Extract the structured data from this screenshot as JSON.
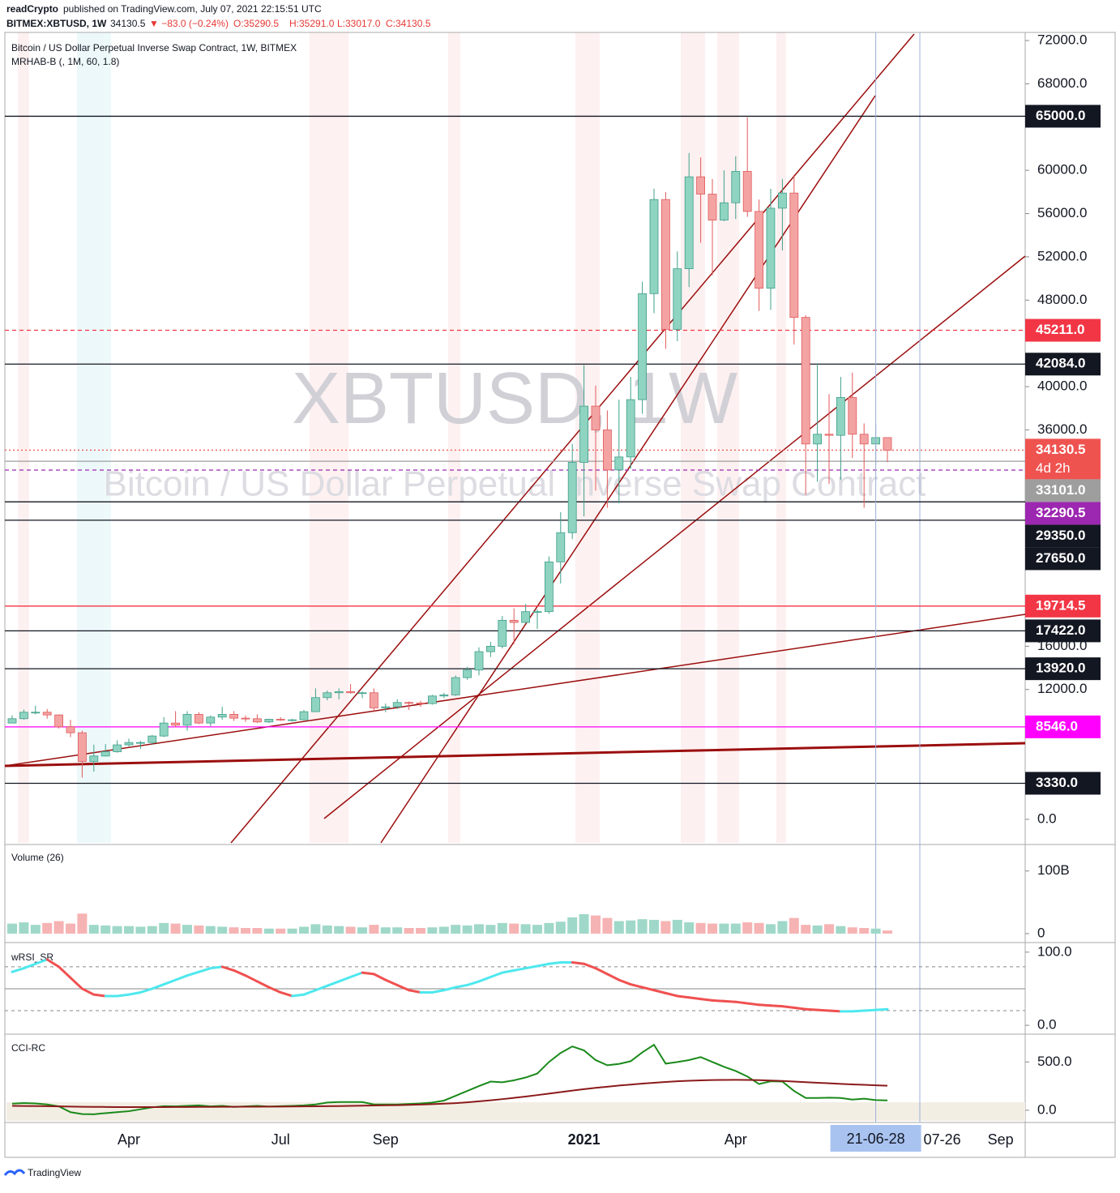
{
  "header": {
    "publisher": "readCrypto",
    "published": "published on TradingView.com, July 07, 2021 22:15:51 UTC",
    "symbol": "BITMEX:XBTUSD, 1W",
    "last": "34130.5",
    "change": "▼ −83.0 (−0.24%)",
    "ohlc": [
      "O:35290.5",
      "H:35291.0",
      "L:33017.0",
      "C:34130.5"
    ]
  },
  "footer": "TradingView",
  "chart_data": [
    {
      "type": "candlestick",
      "title": "Bitcoin / US Dollar Perpetual Inverse Swap Contract, 1W, BITMEX",
      "subtitle": "MRHAB-B (, 1M, 60, 1.8)",
      "watermark": [
        "XBTUSD, 1W",
        "Bitcoin / US Dollar Perpetual Inverse Swap Contract"
      ],
      "categories": [
        null,
        null,
        null,
        null,
        null,
        null,
        null,
        null,
        null,
        null,
        "Apr",
        null,
        null,
        null,
        null,
        null,
        null,
        null,
        null,
        null,
        null,
        null,
        null,
        "Jul",
        null,
        null,
        null,
        null,
        null,
        null,
        null,
        null,
        "Sep",
        null,
        null,
        null,
        null,
        null,
        null,
        null,
        null,
        null,
        null,
        null,
        null,
        null,
        null,
        null,
        null,
        "2021",
        null,
        null,
        null,
        null,
        null,
        null,
        null,
        null,
        null,
        null,
        null,
        null,
        "Apr",
        null,
        null,
        null,
        null,
        null,
        null,
        null,
        null,
        null,
        null,
        null,
        null,
        null
      ],
      "open": [
        8900,
        9300,
        9900,
        9900,
        9650,
        8550,
        8000,
        5350,
        5850,
        6250,
        6880,
        7100,
        7100,
        7700,
        8900,
        8700,
        9700,
        8900,
        9450,
        9700,
        9350,
        9300,
        9000,
        9250,
        9200,
        9200,
        9950,
        11250,
        11700,
        11800,
        11700,
        11700,
        10300,
        10400,
        10800,
        10750,
        10700,
        11400,
        11500,
        13100,
        13800,
        15500,
        16000,
        18400,
        18200,
        19200,
        19200,
        23800,
        26500,
        33000,
        38200,
        36000,
        32300,
        33500,
        38800,
        48600,
        57300,
        45300,
        50900,
        59400,
        57800,
        55400,
        57000,
        59900,
        56200,
        49100,
        56500,
        57900,
        46400,
        34700,
        35600,
        35500,
        39000,
        35600,
        34700,
        35290.5
      ],
      "high": [
        9600,
        10150,
        10500,
        10200,
        9700,
        9200,
        8200,
        6900,
        6950,
        7300,
        7460,
        7250,
        7800,
        9450,
        10000,
        10000,
        9900,
        9600,
        10400,
        10000,
        9600,
        9700,
        9300,
        9450,
        9300,
        10100,
        12100,
        11900,
        12100,
        12500,
        11800,
        12100,
        10700,
        11100,
        10900,
        10950,
        11500,
        11700,
        13300,
        14100,
        15900,
        16400,
        18800,
        19500,
        19900,
        19400,
        24300,
        28400,
        34700,
        42000,
        40100,
        37800,
        38800,
        40900,
        49700,
        58300,
        58000,
        52500,
        61600,
        61200,
        59200,
        60000,
        61300,
        64900,
        57300,
        58300,
        59200,
        59600,
        46600,
        42100,
        39300,
        40900,
        41300,
        36600,
        36600,
        35291
      ],
      "low": [
        8900,
        9200,
        9700,
        9300,
        8400,
        7600,
        3850,
        4400,
        5800,
        6150,
        6750,
        6500,
        6900,
        7600,
        8500,
        8200,
        8800,
        8600,
        9200,
        9100,
        9000,
        8900,
        8900,
        9100,
        9050,
        9150,
        9950,
        11000,
        11100,
        11600,
        11200,
        9900,
        9900,
        10200,
        10100,
        10400,
        10600,
        11200,
        11400,
        12900,
        13300,
        15000,
        15800,
        16200,
        18100,
        17600,
        19000,
        21800,
        25900,
        28000,
        30400,
        28800,
        29200,
        32400,
        37500,
        46800,
        43500,
        44200,
        49200,
        53300,
        50300,
        55300,
        55500,
        55700,
        47000,
        47100,
        52600,
        43900,
        30000,
        31200,
        31000,
        31400,
        33400,
        28800,
        32700,
        33017
      ],
      "close": [
        9300,
        9900,
        9900,
        9650,
        8550,
        8000,
        5350,
        5850,
        6250,
        6880,
        7100,
        7100,
        7700,
        8900,
        8700,
        9700,
        8900,
        9450,
        9700,
        9350,
        9300,
        9000,
        9250,
        9200,
        9200,
        9950,
        11250,
        11700,
        11800,
        11700,
        11700,
        10300,
        10400,
        10800,
        10750,
        10700,
        11400,
        11500,
        13100,
        13800,
        15500,
        16000,
        18400,
        18200,
        19200,
        19200,
        23800,
        26500,
        33000,
        38200,
        36000,
        32300,
        33500,
        38800,
        48600,
        57300,
        45300,
        50900,
        59400,
        57800,
        55400,
        57000,
        59900,
        56200,
        49100,
        56500,
        57900,
        46400,
        34700,
        35600,
        35500,
        39000,
        35600,
        34700,
        35290.5,
        34130.5
      ],
      "up_color": "#8fd3c1",
      "down_color": "#f4a3a3",
      "ylim": [
        -2330,
        72750
      ],
      "yticks": [
        {
          "value": 72000,
          "label": "72000.0"
        },
        {
          "value": 68000,
          "label": "68000.0"
        },
        {
          "value": 60000,
          "label": "60000.0"
        },
        {
          "value": 56000,
          "label": "56000.0"
        },
        {
          "value": 52000,
          "label": "52000.0"
        },
        {
          "value": 48000,
          "label": "48000.0"
        },
        {
          "value": 40000,
          "label": "40000.0"
        },
        {
          "value": 36000,
          "label": "36000.0"
        },
        {
          "value": 16000,
          "label": "16000.0"
        },
        {
          "value": 12000,
          "label": "12000.0"
        },
        {
          "value": 0,
          "label": "0.0"
        }
      ],
      "levels": [
        {
          "value": 65000,
          "label": "65000.0",
          "color": "#131722",
          "style": "solid"
        },
        {
          "value": 45211,
          "label": "45211.0",
          "color": "#f23645",
          "style": "dashed"
        },
        {
          "value": 42084,
          "label": "42084.0",
          "color": "#131722",
          "style": "solid"
        },
        {
          "value": 34130.5,
          "label": "34130.5",
          "countdown": "4d 2h",
          "color": "#ef5350",
          "style": "dotted"
        },
        {
          "value": 33101,
          "label": "33101.0",
          "color": "#9e9e9e",
          "style": "solid"
        },
        {
          "value": 32290.5,
          "label": "32290.5",
          "color": "#9c27b0",
          "style": "dashed"
        },
        {
          "value": 29350,
          "label": "29350.0",
          "color": "#131722",
          "style": "solid"
        },
        {
          "value": 27650,
          "label": "27650.0",
          "color": "#131722",
          "style": "solid"
        },
        {
          "value": 19714.5,
          "label": "19714.5",
          "color": "#f23645",
          "style": "solid"
        },
        {
          "value": 17422,
          "label": "17422.0",
          "color": "#131722",
          "style": "solid"
        },
        {
          "value": 13920,
          "label": "13920.0",
          "color": "#131722",
          "style": "solid"
        },
        {
          "value": 8546,
          "label": "8546.0",
          "color": "#ff00ff",
          "style": "solid"
        },
        {
          "value": 3330,
          "label": "3330.0",
          "color": "#131722",
          "style": "solid"
        }
      ],
      "crosshair_label": "21-06-28",
      "future_labels": [
        "07-26",
        "Sep"
      ]
    },
    {
      "type": "bar",
      "title": "Volume (26)",
      "values": [
        16,
        18,
        14,
        17,
        20,
        16,
        32,
        14,
        13,
        12,
        12,
        11,
        12,
        17,
        16,
        14,
        13,
        12,
        11,
        10,
        9,
        9,
        8,
        8,
        8,
        11,
        15,
        13,
        12,
        11,
        10,
        14,
        10,
        10,
        9,
        9,
        10,
        11,
        14,
        13,
        15,
        14,
        17,
        16,
        15,
        14,
        17,
        19,
        26,
        31,
        29,
        25,
        20,
        21,
        23,
        22,
        20,
        22,
        18,
        17,
        16,
        16,
        16,
        18,
        17,
        15,
        20,
        25,
        14,
        13,
        15,
        12,
        10,
        9,
        8,
        5
      ],
      "up_color": "#9fd8c8",
      "down_color": "#f6b3b3",
      "ylim": [
        -13,
        141
      ],
      "yticks": [
        {
          "value": 100,
          "label": "100B"
        },
        0
      ]
    },
    {
      "type": "line",
      "title": "wRSI_SR",
      "values": [
        73,
        78,
        84,
        90,
        80,
        65,
        50,
        42,
        40,
        40,
        42,
        45,
        50,
        56,
        62,
        68,
        73,
        78,
        80,
        75,
        68,
        60,
        52,
        45,
        40,
        42,
        48,
        54,
        60,
        66,
        72,
        70,
        62,
        55,
        48,
        45,
        45,
        48,
        52,
        55,
        60,
        66,
        72,
        75,
        78,
        81,
        84,
        86,
        86,
        84,
        78,
        70,
        62,
        56,
        52,
        48,
        44,
        40,
        38,
        36,
        34,
        33,
        32,
        30,
        28,
        27,
        26,
        24,
        22,
        21,
        20,
        19,
        19,
        20,
        21,
        22
      ],
      "up_color": "#4ee8ee",
      "down_color": "#f05050",
      "levels": [
        80,
        50,
        20
      ],
      "ylim": [
        -11,
        112
      ],
      "yticks": [
        {
          "value": 100,
          "label": "100.0"
        },
        {
          "value": 0,
          "label": "0.0"
        }
      ]
    },
    {
      "type": "line",
      "title": "CCI-RC",
      "series": [
        {
          "color": "#1a8a1a",
          "values": [
            68,
            75,
            70,
            60,
            40,
            -20,
            -40,
            -42,
            -30,
            -20,
            -10,
            10,
            30,
            42,
            40,
            45,
            50,
            40,
            45,
            35,
            40,
            45,
            38,
            42,
            45,
            50,
            60,
            80,
            85,
            85,
            85,
            60,
            60,
            60,
            65,
            70,
            80,
            100,
            150,
            200,
            250,
            297,
            290,
            310,
            339,
            380,
            500,
            593,
            661,
            620,
            520,
            466,
            480,
            508,
            600,
            678,
            483,
            500,
            520,
            551,
            500,
            450,
            407,
            350,
            271,
            300,
            297,
            200,
            127,
            127,
            130,
            127,
            110,
            120,
            105,
            102
          ]
        },
        {
          "color": "#8b1a1a",
          "values": [
            45,
            44,
            43,
            42,
            40,
            38,
            36,
            35,
            34,
            33,
            33,
            33,
            33,
            33,
            34,
            34,
            35,
            35,
            36,
            36,
            37,
            37,
            38,
            38,
            39,
            40,
            41,
            42,
            43,
            45,
            47,
            49,
            51,
            53,
            56,
            59,
            63,
            68,
            74,
            82,
            92,
            103,
            115,
            128,
            142,
            157,
            172,
            188,
            204,
            218,
            232,
            244,
            256,
            266,
            276,
            285,
            293,
            300,
            306,
            310,
            313,
            314,
            315,
            314,
            312,
            308,
            303,
            297,
            291,
            285,
            279,
            273,
            268,
            263,
            258,
            254
          ]
        }
      ],
      "ylim": [
        -127,
        780
      ],
      "yticks": [
        {
          "value": 500,
          "label": "500.0"
        },
        {
          "value": 0,
          "label": "0.0"
        }
      ]
    }
  ]
}
